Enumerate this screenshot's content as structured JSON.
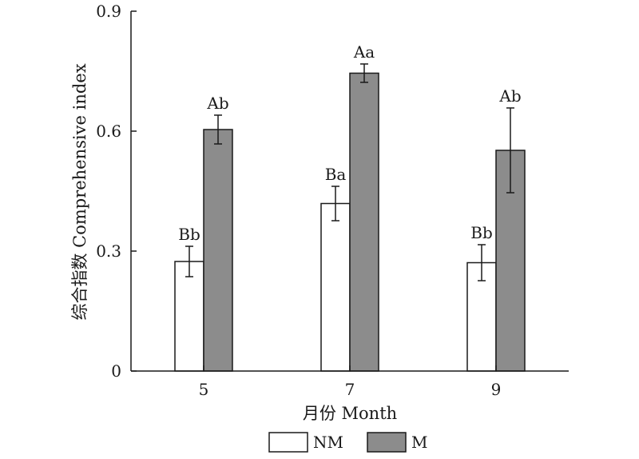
{
  "chart_data": {
    "type": "bar",
    "categories": [
      "5",
      "7",
      "9"
    ],
    "series": [
      {
        "name": "NM",
        "color": "#ffffff",
        "values": [
          0.274,
          0.419,
          0.271
        ],
        "errors": [
          0.038,
          0.043,
          0.045
        ],
        "labels": [
          "Bb",
          "Ba",
          "Bb"
        ]
      },
      {
        "name": "M",
        "color": "#8c8c8c",
        "values": [
          0.604,
          0.745,
          0.552
        ],
        "errors": [
          0.036,
          0.023,
          0.106
        ],
        "labels": [
          "Ab",
          "Aa",
          "Ab"
        ]
      }
    ],
    "xlabel": "月份 Month",
    "ylabel": "综合指数 Comprehensive index",
    "ylim": [
      0,
      0.9
    ],
    "yticks": [
      "0",
      "0.3",
      "0.6",
      "0.9"
    ],
    "grid": false,
    "legend_position": "bottom"
  }
}
